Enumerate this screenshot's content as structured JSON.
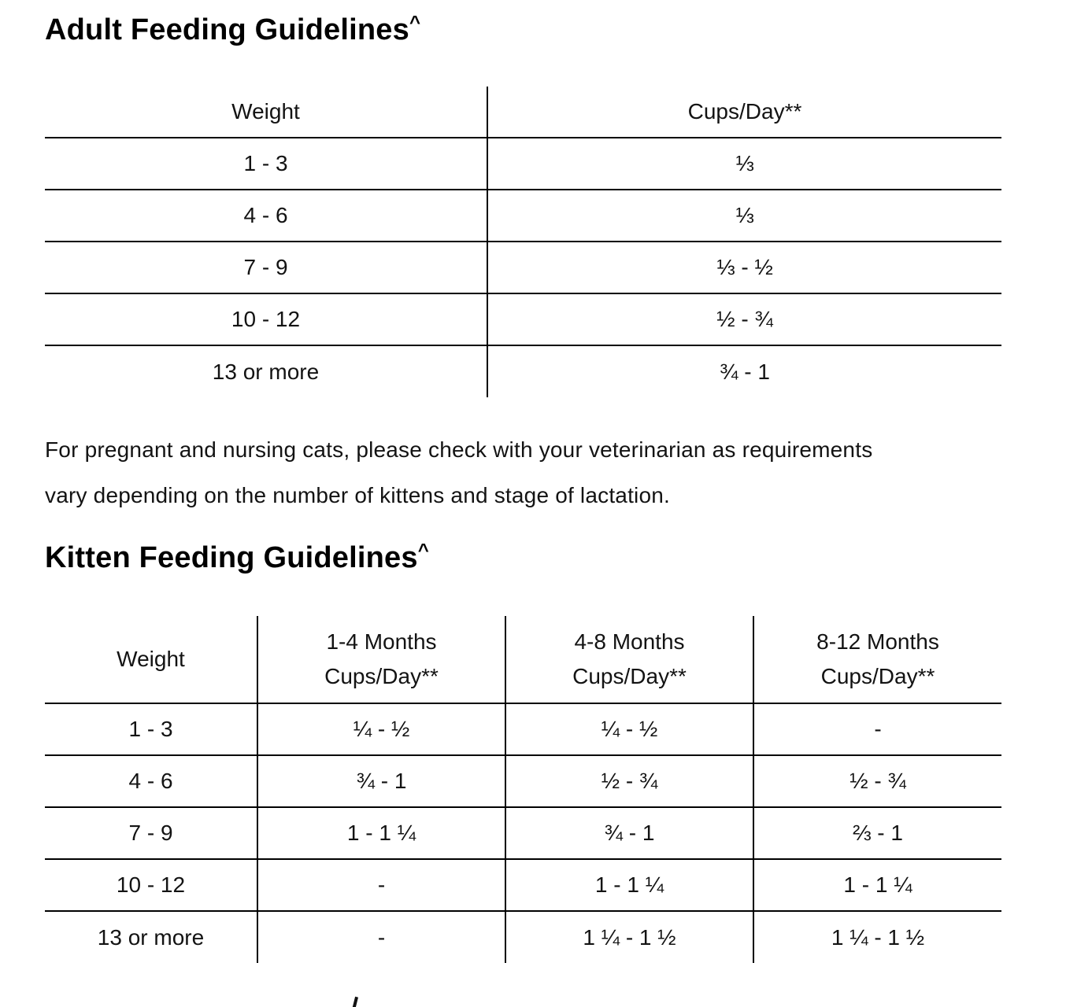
{
  "page": {
    "background_color": "#ffffff",
    "text_color": "#131313",
    "line_color": "#000000"
  },
  "adult_section": {
    "title": "Adult Feeding Guidelines",
    "title_superscript": "^",
    "table": {
      "headers": {
        "weight": "Weight",
        "cups": "Cups/Day**"
      },
      "rows": [
        {
          "weight": "1 - 3",
          "cups": "⅓"
        },
        {
          "weight": "4 - 6",
          "cups": "⅓"
        },
        {
          "weight": "7 - 9",
          "cups": "⅓ - ½"
        },
        {
          "weight": "10 - 12",
          "cups": "½ - ¾"
        },
        {
          "weight": "13 or more",
          "cups": "¾ - 1"
        }
      ]
    }
  },
  "pregnancy_note": {
    "line1": "For pregnant and nursing cats, please check with your veterinarian as requirements",
    "line2": "vary depending on the number of kittens and stage of lactation."
  },
  "kitten_section": {
    "title": "Kitten Feeding Guidelines",
    "title_superscript": "^",
    "table": {
      "headers": {
        "weight": "Weight",
        "col1_line1": "1-4 Months",
        "col1_line2": "Cups/Day**",
        "col2_line1": "4-8 Months",
        "col2_line2": "Cups/Day**",
        "col3_line1": "8-12 Months",
        "col3_line2": "Cups/Day**"
      },
      "rows": [
        {
          "weight": "1 - 3",
          "m1_4": "¼ - ½",
          "m4_8": "¼ - ½",
          "m8_12": "-"
        },
        {
          "weight": "4 - 6",
          "m1_4": "¾ - 1",
          "m4_8": "½ - ¾",
          "m8_12": "½ - ¾"
        },
        {
          "weight": "7 - 9",
          "m1_4": "1 - 1 ¼",
          "m4_8": "¾ - 1",
          "m8_12": "⅔ - 1"
        },
        {
          "weight": "10 - 12",
          "m1_4": "-",
          "m4_8": "1 - 1 ¼",
          "m8_12": "1 - 1 ¼"
        },
        {
          "weight": "13 or more",
          "m1_4": "-",
          "m4_8": "1 ¼ - 1 ½",
          "m8_12": "1 ¼ - 1 ½"
        }
      ]
    }
  }
}
